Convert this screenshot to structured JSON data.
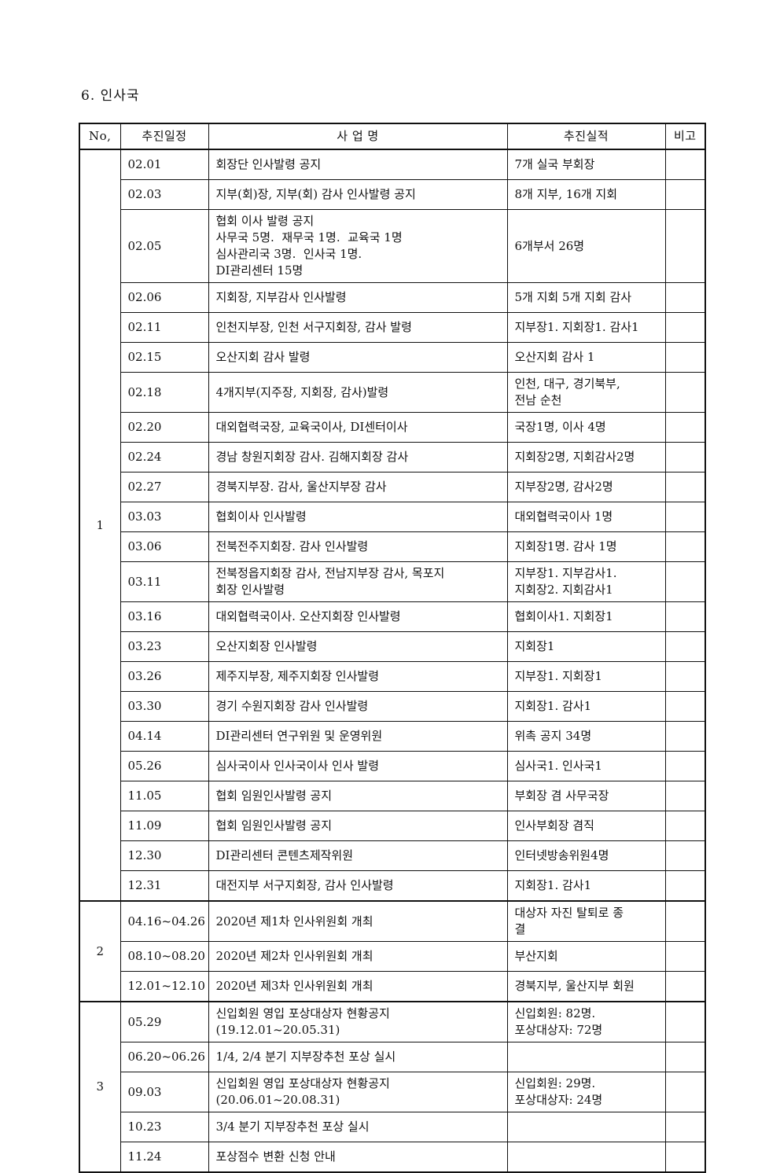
{
  "title": "6. 인사국",
  "table": {
    "headers": {
      "no": "No,",
      "schedule": "추진일정",
      "project": "사 업 명",
      "result": "추진실적",
      "note": "비고"
    },
    "groups": [
      {
        "no": "1",
        "rows": [
          {
            "date": "02.01",
            "project": "회장단 인사발령 공지",
            "result": "7개 실국 부회장",
            "note": ""
          },
          {
            "date": "02.03",
            "project": "지부(회)장, 지부(회) 감사 인사발령 공지",
            "result": "8개 지부, 16개 지회",
            "note": ""
          },
          {
            "date": "02.05",
            "project": "협회 이사 발령 공지\n사무국 5명.  재무국 1명.  교육국 1명\n심사관리국 3명.  인사국 1명.\nDI관리센터 15명",
            "result": "6개부서 26명",
            "note": ""
          },
          {
            "date": "02.06",
            "project": "지회장, 지부감사 인사발령",
            "result": "5개 지회 5개 지회 감사",
            "note": ""
          },
          {
            "date": "02.11",
            "project": "인천지부장, 인천 서구지회장, 감사 발령",
            "result": "지부장1. 지회장1. 감사1",
            "note": ""
          },
          {
            "date": "02.15",
            "project": "오산지회 감사 발령",
            "result": "오산지회 감사 1",
            "note": ""
          },
          {
            "date": "02.18",
            "project": "4개지부(지주장, 지회장, 감사)발령",
            "result": "인천, 대구, 경기북부,\n전남 순천",
            "note": ""
          },
          {
            "date": "02.20",
            "project": "대외협력국장, 교육국이사, DI센터이사",
            "result": "국장1명, 이사 4명",
            "note": ""
          },
          {
            "date": "02.24",
            "project": "경남 창원지회장 감사. 김해지회장 감사",
            "result": "지회장2명, 지회감사2명",
            "note": ""
          },
          {
            "date": "02.27",
            "project": "경북지부장. 감사, 울산지부장 감사",
            "result": "지부장2명, 감사2명",
            "note": ""
          },
          {
            "date": "03.03",
            "project": "협회이사 인사발령",
            "result": "대외협력국이사 1명",
            "note": ""
          },
          {
            "date": "03.06",
            "project": "전북전주지회장. 감사 인사발령",
            "result": "지회장1명. 감사 1명",
            "note": ""
          },
          {
            "date": "03.11",
            "project": "전북정읍지회장 감사, 전남지부장 감사, 목포지\n회장 인사발령",
            "result": "지부장1. 지부감사1.\n지회장2. 지회감사1",
            "note": ""
          },
          {
            "date": "03.16",
            "project": "대외협력국이사. 오산지회장 인사발령",
            "result": "협회이사1. 지회장1",
            "note": ""
          },
          {
            "date": "03.23",
            "project": "오산지회장 인사발령",
            "result": "지회장1",
            "note": ""
          },
          {
            "date": "03.26",
            "project": "제주지부장, 제주지회장 인사발령",
            "result": "지부장1. 지회장1",
            "note": ""
          },
          {
            "date": "03.30",
            "project": "경기 수원지회장 감사 인사발령",
            "result": "지회장1. 감사1",
            "note": ""
          },
          {
            "date": "04.14",
            "project": "DI관리센터 연구위원 및 운영위원",
            "result": "위촉 공지 34명",
            "note": ""
          },
          {
            "date": "05.26",
            "project": "심사국이사 인사국이사 인사 발령",
            "result": "심사국1. 인사국1",
            "note": ""
          },
          {
            "date": "11.05",
            "project": "협회 임원인사발령 공지",
            "result": "부회장 겸 사무국장",
            "note": ""
          },
          {
            "date": "11.09",
            "project": "협회 임원인사발령 공지",
            "result": "인사부회장 겸직",
            "note": ""
          },
          {
            "date": "12.30",
            "project": "DI관리센터 콘텐츠제작위원",
            "result": "인터넷방송위원4명",
            "note": ""
          },
          {
            "date": "12.31",
            "project": "대전지부 서구지회장, 감사 인사발령",
            "result": "지회장1. 감사1",
            "note": ""
          }
        ]
      },
      {
        "no": "2",
        "rows": [
          {
            "date": "04.16~04.26",
            "project": "2020년 제1차 인사위원회 개최",
            "result": "대상자 자진 탈퇴로 종\n결",
            "note": ""
          },
          {
            "date": "08.10~08.20",
            "project": "2020년 제2차 인사위원회 개최",
            "result": "부산지회",
            "note": ""
          },
          {
            "date": "12.01~12.10",
            "project": "2020년 제3차 인사위원회 개최",
            "result": "경북지부, 울산지부 회원",
            "note": ""
          }
        ]
      },
      {
        "no": "3",
        "rows": [
          {
            "date": "05.29",
            "project": "신입회원 영입 포상대상자 현황공지\n(19.12.01~20.05.31)",
            "result": "신입회원: 82명.\n포상대상자: 72명",
            "note": ""
          },
          {
            "date": "06.20~06.26",
            "project": "1/4, 2/4 분기 지부장추천 포상 실시",
            "result": "",
            "note": ""
          },
          {
            "date": "09.03",
            "project": "신입회원 영입 포상대상자 현황공지\n(20.06.01~20.08.31)",
            "result": "신입회원: 29명.\n포상대상자: 24명",
            "note": ""
          },
          {
            "date": "10.23",
            "project": "3/4 분기 지부장추천 포상 실시",
            "result": "",
            "note": ""
          },
          {
            "date": "11.24",
            "project": "포상점수 변환 신청 안내",
            "result": "",
            "note": ""
          }
        ]
      }
    ]
  }
}
